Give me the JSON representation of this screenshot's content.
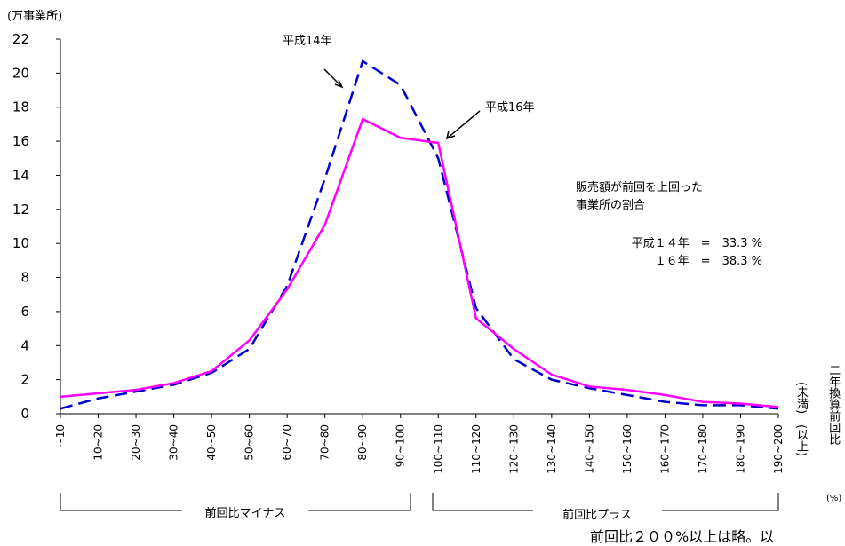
{
  "chart_data": {
    "type": "line",
    "unit_label": "(万事業所)",
    "categories": [
      "~10",
      "10~20",
      "20~30",
      "30~40",
      "40~50",
      "50~60",
      "60~70",
      "70~80",
      "80~90",
      "90~100",
      "100~110",
      "110~120",
      "120~130",
      "130~140",
      "140~150",
      "150~160",
      "160~170",
      "170~180",
      "180~190",
      "190~200"
    ],
    "series": [
      {
        "name": "平成14年",
        "color": "#0000cc",
        "dashed": true,
        "values": [
          0.3,
          0.9,
          1.3,
          1.7,
          2.4,
          3.8,
          7.5,
          13.8,
          20.7,
          19.3,
          15.0,
          6.2,
          3.2,
          2.0,
          1.5,
          1.1,
          0.7,
          0.5,
          0.5,
          0.3
        ]
      },
      {
        "name": "平成16年",
        "color": "#ff00ff",
        "dashed": false,
        "values": [
          1.0,
          1.2,
          1.4,
          1.8,
          2.5,
          4.3,
          7.3,
          11.1,
          17.3,
          16.2,
          15.9,
          5.6,
          3.8,
          2.3,
          1.6,
          1.4,
          1.1,
          0.7,
          0.6,
          0.4
        ]
      }
    ],
    "ylim": [
      0,
      22
    ],
    "yticks": [
      0,
      2,
      4,
      6,
      8,
      10,
      12,
      14,
      16,
      18,
      20,
      22
    ],
    "annotation_title": [
      "販売額が前回を上回った",
      "事業所の割合"
    ],
    "annotation_rows": [
      "平成１４年　=　33.3 %",
      "１６年　=　38.3 %"
    ],
    "group_labels": [
      "前回比マイナス",
      "前回比プラス"
    ],
    "end_labels": [
      "(以上)",
      "(未満)"
    ],
    "right_axis_label": "二年換算前回比",
    "right_axis_unit": "(%)",
    "footnote": "前回比２００%以上は略。以"
  }
}
